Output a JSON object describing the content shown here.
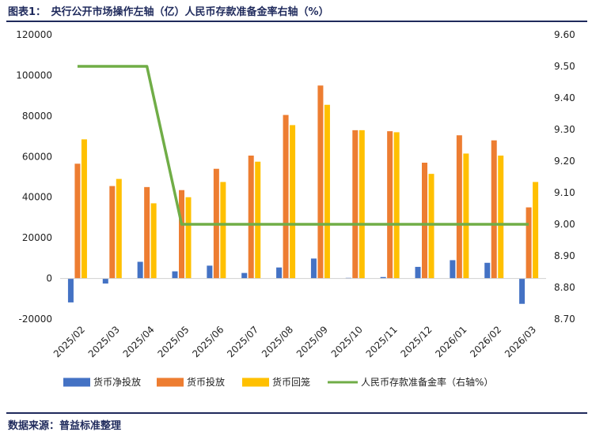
{
  "header": {
    "title": "图表1：　央行公开市场操作左轴（亿）人民币存款准备金率右轴（%）"
  },
  "footer": {
    "source": "数据来源：普益标准整理"
  },
  "chart_data": {
    "type": "bar",
    "categories": [
      "2025/02",
      "2025/03",
      "2025/04",
      "2025/05",
      "2025/06",
      "2025/07",
      "2025/08",
      "2025/09",
      "2025/10",
      "2025/11",
      "2025/12",
      "2026/01",
      "2026/02",
      "2026/03"
    ],
    "series": [
      {
        "name": "货币净投放",
        "color": "#4472C4",
        "axis": "left",
        "values": [
          -11800,
          -2500,
          8200,
          3500,
          6300,
          2700,
          5400,
          9800,
          300,
          700,
          5700,
          9000,
          7700,
          -12500
        ]
      },
      {
        "name": "货币投放",
        "color": "#ED7D31",
        "axis": "left",
        "values": [
          56500,
          45500,
          45000,
          43500,
          54000,
          60500,
          80500,
          95000,
          73000,
          72500,
          57000,
          70500,
          68000,
          35000
        ]
      },
      {
        "name": "货币回笼",
        "color": "#FFC000",
        "axis": "left",
        "values": [
          68500,
          49000,
          37000,
          40000,
          47500,
          57500,
          75500,
          85500,
          73000,
          72000,
          51500,
          61500,
          60500,
          47500
        ]
      },
      {
        "name": "人民币存款准备金率（右轴%）",
        "color": "#70AD47",
        "axis": "right",
        "type": "line",
        "values": [
          9.5,
          9.5,
          9.5,
          9.0,
          9.0,
          9.0,
          9.0,
          9.0,
          9.0,
          9.0,
          9.0,
          9.0,
          9.0,
          9.0
        ]
      }
    ],
    "left_axis": {
      "ylim": [
        -20000,
        120000
      ],
      "ticks": [
        "-20000",
        "0",
        "20000",
        "40000",
        "60000",
        "80000",
        "100000",
        "120000"
      ],
      "tick_values": [
        -20000,
        0,
        20000,
        40000,
        60000,
        80000,
        100000,
        120000
      ]
    },
    "right_axis": {
      "ylim": [
        8.7,
        9.6
      ],
      "ticks": [
        "8.70",
        "8.80",
        "8.90",
        "9.00",
        "9.10",
        "9.20",
        "9.30",
        "9.40",
        "9.50",
        "9.60"
      ],
      "tick_values": [
        8.7,
        8.8,
        8.9,
        9.0,
        9.1,
        9.2,
        9.3,
        9.4,
        9.5,
        9.6
      ]
    },
    "grid": false,
    "legend": "bottom"
  }
}
